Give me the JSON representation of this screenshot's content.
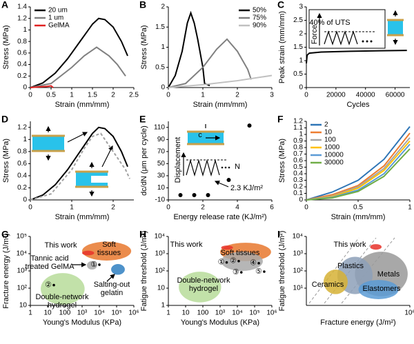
{
  "chart_data": [
    {
      "type": "line",
      "panel": "A",
      "xlabel": "Strain (mm/mm)",
      "ylabel": "Stress (MPa)",
      "xlim": [
        0,
        2.5
      ],
      "ylim": [
        0,
        1.4
      ],
      "xticks": [
        0,
        0.5,
        1,
        1.5,
        2,
        2.5
      ],
      "yticks": [
        0,
        0.2,
        0.4,
        0.6,
        0.8,
        1,
        1.2,
        1.4
      ],
      "legend": "upper left",
      "series": [
        {
          "name": "20 um",
          "color": "#000000",
          "x": [
            0,
            0.3,
            0.6,
            0.9,
            1.2,
            1.5,
            1.65,
            1.8,
            2.0,
            2.2,
            2.35
          ],
          "values": [
            0,
            0.08,
            0.25,
            0.5,
            0.8,
            1.1,
            1.2,
            1.18,
            1.05,
            0.8,
            0.55
          ]
        },
        {
          "name": "1 um",
          "color": "#808080",
          "x": [
            0,
            0.5,
            1.0,
            1.3,
            1.6,
            1.9,
            2.1,
            2.3
          ],
          "values": [
            0,
            0.07,
            0.35,
            0.55,
            0.7,
            0.55,
            0.4,
            0.2
          ]
        },
        {
          "name": "GelMA",
          "color": "#e02020",
          "x": [
            0,
            0.2,
            0.4,
            0.5,
            0.55
          ],
          "values": [
            0,
            0.01,
            0.02,
            0.03,
            0
          ]
        }
      ]
    },
    {
      "type": "line",
      "panel": "B",
      "xlabel": "Strain (mm/mm)",
      "ylabel": "Stress (MPa)",
      "xlim": [
        0,
        3
      ],
      "ylim": [
        0,
        2
      ],
      "xticks": [
        0,
        1,
        2,
        3
      ],
      "yticks": [
        0,
        0.5,
        1,
        1.5,
        2
      ],
      "legend": "upper right",
      "series": [
        {
          "name": "50%",
          "color": "#000000",
          "x": [
            0,
            0.2,
            0.4,
            0.55,
            0.65,
            0.75,
            0.85,
            1.0,
            1.05,
            1.2
          ],
          "values": [
            0,
            0.3,
            0.9,
            1.6,
            1.85,
            1.6,
            1.2,
            0.5,
            0.1,
            0.05
          ]
        },
        {
          "name": "75%",
          "color": "#808080",
          "x": [
            0,
            0.5,
            1.0,
            1.4,
            1.7,
            2.0,
            2.3,
            2.4
          ],
          "values": [
            0,
            0.1,
            0.5,
            0.95,
            1.2,
            0.9,
            0.45,
            0.2
          ]
        },
        {
          "name": "90%",
          "color": "#c0c0c0",
          "x": [
            0,
            1,
            2,
            3
          ],
          "values": [
            0,
            0.07,
            0.17,
            0.3
          ]
        }
      ]
    },
    {
      "type": "line",
      "panel": "C",
      "xlabel": "Cycles",
      "ylabel": "Peak strain (mm/mm)",
      "xlim": [
        0,
        70000
      ],
      "ylim": [
        0,
        3
      ],
      "xticks": [
        0,
        20000,
        40000,
        60000
      ],
      "yticks": [
        0,
        0.5,
        1,
        1.5,
        2,
        2.5,
        3
      ],
      "annotations": [
        "40% of UTS",
        "Force"
      ],
      "series": [
        {
          "color": "#000000",
          "x": [
            0,
            500,
            2000,
            10000,
            30000,
            50000,
            68000
          ],
          "values": [
            0.9,
            1.2,
            1.28,
            1.32,
            1.35,
            1.37,
            1.38
          ]
        }
      ]
    },
    {
      "type": "line",
      "panel": "D",
      "xlabel": "Strain (mm/mm)",
      "ylabel": "Stress (MPa)",
      "xlim": [
        0,
        2.5
      ],
      "ylim": [
        0,
        1.3
      ],
      "xticks": [
        0,
        1,
        2
      ],
      "yticks": [
        0,
        0.2,
        0.4,
        0.6,
        0.8,
        1,
        1.2
      ],
      "series": [
        {
          "color": "#000000",
          "x": [
            0,
            0.3,
            0.6,
            0.9,
            1.2,
            1.5,
            1.65,
            1.8,
            2.0,
            2.2,
            2.35
          ],
          "values": [
            0,
            0.08,
            0.25,
            0.5,
            0.8,
            1.1,
            1.2,
            1.18,
            1.05,
            0.8,
            0.55
          ]
        },
        {
          "color": "#a0a0a0",
          "dash": true,
          "x": [
            0,
            0.5,
            1,
            1.3,
            1.5,
            1.7,
            2.0,
            2.3,
            2.4
          ],
          "values": [
            0,
            0.1,
            0.5,
            0.85,
            1.05,
            1.1,
            0.8,
            0.5,
            0.35
          ]
        }
      ]
    },
    {
      "type": "scatter",
      "panel": "E",
      "xlabel": "Energy release rate (KJ/m²)",
      "ylabel": "dc/dN (μm per cycle)",
      "xlim": [
        0,
        6
      ],
      "ylim": [
        -10,
        120
      ],
      "xticks": [
        0,
        2,
        4,
        6
      ],
      "yticks": [
        -10,
        10,
        30,
        50,
        70,
        90,
        110
      ],
      "color": "#000000",
      "x": [
        0.7,
        1.5,
        2.3,
        3.5,
        4.7
      ],
      "values": [
        -2,
        -2,
        -2,
        23,
        113
      ],
      "annotations": [
        "Displacement",
        "N",
        "c",
        "2.3 KJ/m²"
      ]
    },
    {
      "type": "line",
      "panel": "F",
      "xlabel": "Strain (mm/mm)",
      "ylabel": "Stress (MPa)",
      "xlim": [
        0,
        1
      ],
      "ylim": [
        0,
        1.2
      ],
      "xticks": [
        0,
        0.5,
        1
      ],
      "yticks": [
        0,
        0.1,
        0.2,
        0.3,
        0.4,
        0.5,
        0.6,
        0.7,
        0.8,
        0.9,
        1,
        1.1,
        1.2
      ],
      "legend": "upper left",
      "series": [
        {
          "name": "2",
          "color": "#2e75b6",
          "x": [
            0,
            0.25,
            0.5,
            0.75,
            1
          ],
          "values": [
            0,
            0.12,
            0.3,
            0.62,
            1.12
          ]
        },
        {
          "name": "10",
          "color": "#ed7d31",
          "x": [
            0,
            0.25,
            0.5,
            0.75,
            1
          ],
          "values": [
            0,
            0.08,
            0.22,
            0.52,
            1.02
          ]
        },
        {
          "name": "100",
          "color": "#a5a5a5",
          "x": [
            0,
            0.25,
            0.5,
            0.75,
            1
          ],
          "values": [
            0,
            0.06,
            0.2,
            0.48,
            0.95
          ]
        },
        {
          "name": "1000",
          "color": "#ffc000",
          "x": [
            0,
            0.25,
            0.5,
            0.75,
            1
          ],
          "values": [
            0,
            0.05,
            0.18,
            0.45,
            0.9
          ]
        },
        {
          "name": "10000",
          "color": "#5b9bd5",
          "x": [
            0,
            0.25,
            0.5,
            0.75,
            1
          ],
          "values": [
            0,
            0.04,
            0.15,
            0.4,
            0.85
          ]
        },
        {
          "name": "30000",
          "color": "#70ad47",
          "x": [
            0,
            0.25,
            0.5,
            0.75,
            1
          ],
          "values": [
            0,
            0.03,
            0.13,
            0.36,
            0.78
          ]
        }
      ]
    },
    {
      "type": "region",
      "panel": "G",
      "xlabel": "Young's Modulus (KPa)",
      "ylabel": "Fracture energy (J/m²)",
      "xscale": "log",
      "yscale": "log",
      "xlim": [
        1,
        1000000
      ],
      "ylim": [
        10,
        100000
      ],
      "xticks": [
        1,
        10,
        100,
        {
          "value": 1000,
          "label": "10³"
        },
        {
          "value": 10000,
          "label": "10⁴"
        },
        {
          "value": 100000,
          "label": "10⁵"
        },
        {
          "value": 1000000,
          "label": "10⁶"
        }
      ],
      "yticks": [
        10,
        {
          "value": 100,
          "label": "10²"
        },
        {
          "value": 1000,
          "label": "10³"
        },
        {
          "value": 10000,
          "label": "10⁴"
        },
        {
          "value": 100000,
          "label": "10⁵"
        }
      ],
      "regions": [
        {
          "name": [
            "Soft",
            "tissues"
          ],
          "color": "#e8782e",
          "x": [
            1000,
            700000
          ],
          "y": [
            4000,
            50000
          ]
        },
        {
          "name": [
            "This work"
          ],
          "color": "#e8332a",
          "x": [
            1000,
            5000
          ],
          "y": [
            8000,
            15000
          ]
        },
        {
          "name": [
            "Tannic acid",
            "treated GelMA"
          ],
          "color": "#a9a9a9",
          "x": [
            1900,
            7400
          ],
          "y": [
            1200,
            3700
          ]
        },
        {
          "name": [
            "Salting-out",
            "gelatin"
          ],
          "color": "#2f7fc1",
          "x": [
            48000,
            300000
          ],
          "y": [
            600,
            2500
          ]
        },
        {
          "name": [
            "Double-network",
            "hydrogel"
          ],
          "color": "#b7dc9a",
          "x": [
            4,
            1400
          ],
          "y": [
            11,
            750
          ]
        }
      ],
      "points": [
        {
          "label": "①",
          "x": 10000,
          "y": 2300
        },
        {
          "label": "②",
          "x": 23,
          "y": 150
        }
      ]
    },
    {
      "type": "region",
      "panel": "H",
      "xlabel": "Young's Modulus (KPa)",
      "ylabel": "Fatigue threshold (J/m²)",
      "xscale": "log",
      "yscale": "log",
      "xlim": [
        1,
        1000000
      ],
      "ylim": [
        1,
        10000
      ],
      "xticks": [
        1,
        10,
        100,
        {
          "value": 1000,
          "label": "10³"
        },
        {
          "value": 10000,
          "label": "10⁴"
        },
        {
          "value": 100000,
          "label": "10⁵"
        },
        {
          "value": 1000000,
          "label": "10⁶"
        }
      ],
      "yticks": [
        1,
        10,
        {
          "value": 100,
          "label": "10²"
        },
        {
          "value": 1000,
          "label": "10³"
        },
        {
          "value": 10000,
          "label": "10⁴"
        }
      ],
      "regions": [
        {
          "name": [
            "Soft tissues"
          ],
          "color": "#e8782e",
          "x": [
            1000,
            900000
          ],
          "y": [
            370,
            4300
          ]
        },
        {
          "color": "#a9a9a9",
          "x": [
            1150,
            300000
          ],
          "y": [
            100,
            1300
          ]
        },
        {
          "name": [
            "This work"
          ],
          "color": "#e8332a",
          "x": [
            1150,
            5600
          ],
          "y": [
            1700,
            3000
          ]
        },
        {
          "name": [
            "Double-network",
            "hydrogel"
          ],
          "color": "#b7dc9a",
          "x": [
            4,
            1150
          ],
          "y": [
            1.5,
            90
          ]
        }
      ],
      "points": [
        {
          "label": "①",
          "x": 2400,
          "y": 310
        },
        {
          "label": "②",
          "x": 12000,
          "y": 370
        },
        {
          "label": "③",
          "x": 17000,
          "y": 83
        },
        {
          "label": "④",
          "x": 175000,
          "y": 280
        },
        {
          "label": "⑤",
          "x": 360000,
          "y": 91
        }
      ]
    },
    {
      "type": "region",
      "panel": "I",
      "xlabel": "Fracture energy (J/m²)",
      "ylabel": "Fatigue threshold (J/m²)",
      "xscale": "log",
      "yscale": "log",
      "xlim": [
        1,
        1000000
      ],
      "ylim": [
        1,
        10000
      ],
      "xticks": [
        {
          "value": 1000000,
          "label": "10⁶"
        }
      ],
      "yticks": [
        {
          "value": 10,
          "label": "10¹"
        },
        {
          "value": 100,
          "label": "10²"
        },
        {
          "value": 1000,
          "label": "10³"
        },
        {
          "value": 10000,
          "label": "10⁴"
        }
      ],
      "regions": [
        {
          "name": [
            "Metals"
          ],
          "color": "#999999",
          "x": [
            650,
            750000
          ],
          "y": [
            3.4,
            1300
          ]
        },
        {
          "name": [
            "Plastics"
          ],
          "color": "#8da0b8",
          "x": [
            63,
            6900
          ],
          "y": [
            4.5,
            660
          ]
        },
        {
          "name": [
            "Elastomers"
          ],
          "color": "#5b9bd5",
          "x": [
            1050,
            220000
          ],
          "y": [
            2.3,
            30
          ]
        },
        {
          "name": [
            "Ceramics"
          ],
          "color": "#d6b135",
          "x": [
            10,
            250
          ],
          "y": [
            4.5,
            120
          ]
        },
        {
          "name": [
            "This work"
          ],
          "color": "#e8332a",
          "x": [
            5000,
            23000
          ],
          "y": [
            1700,
            3600
          ]
        }
      ]
    }
  ]
}
